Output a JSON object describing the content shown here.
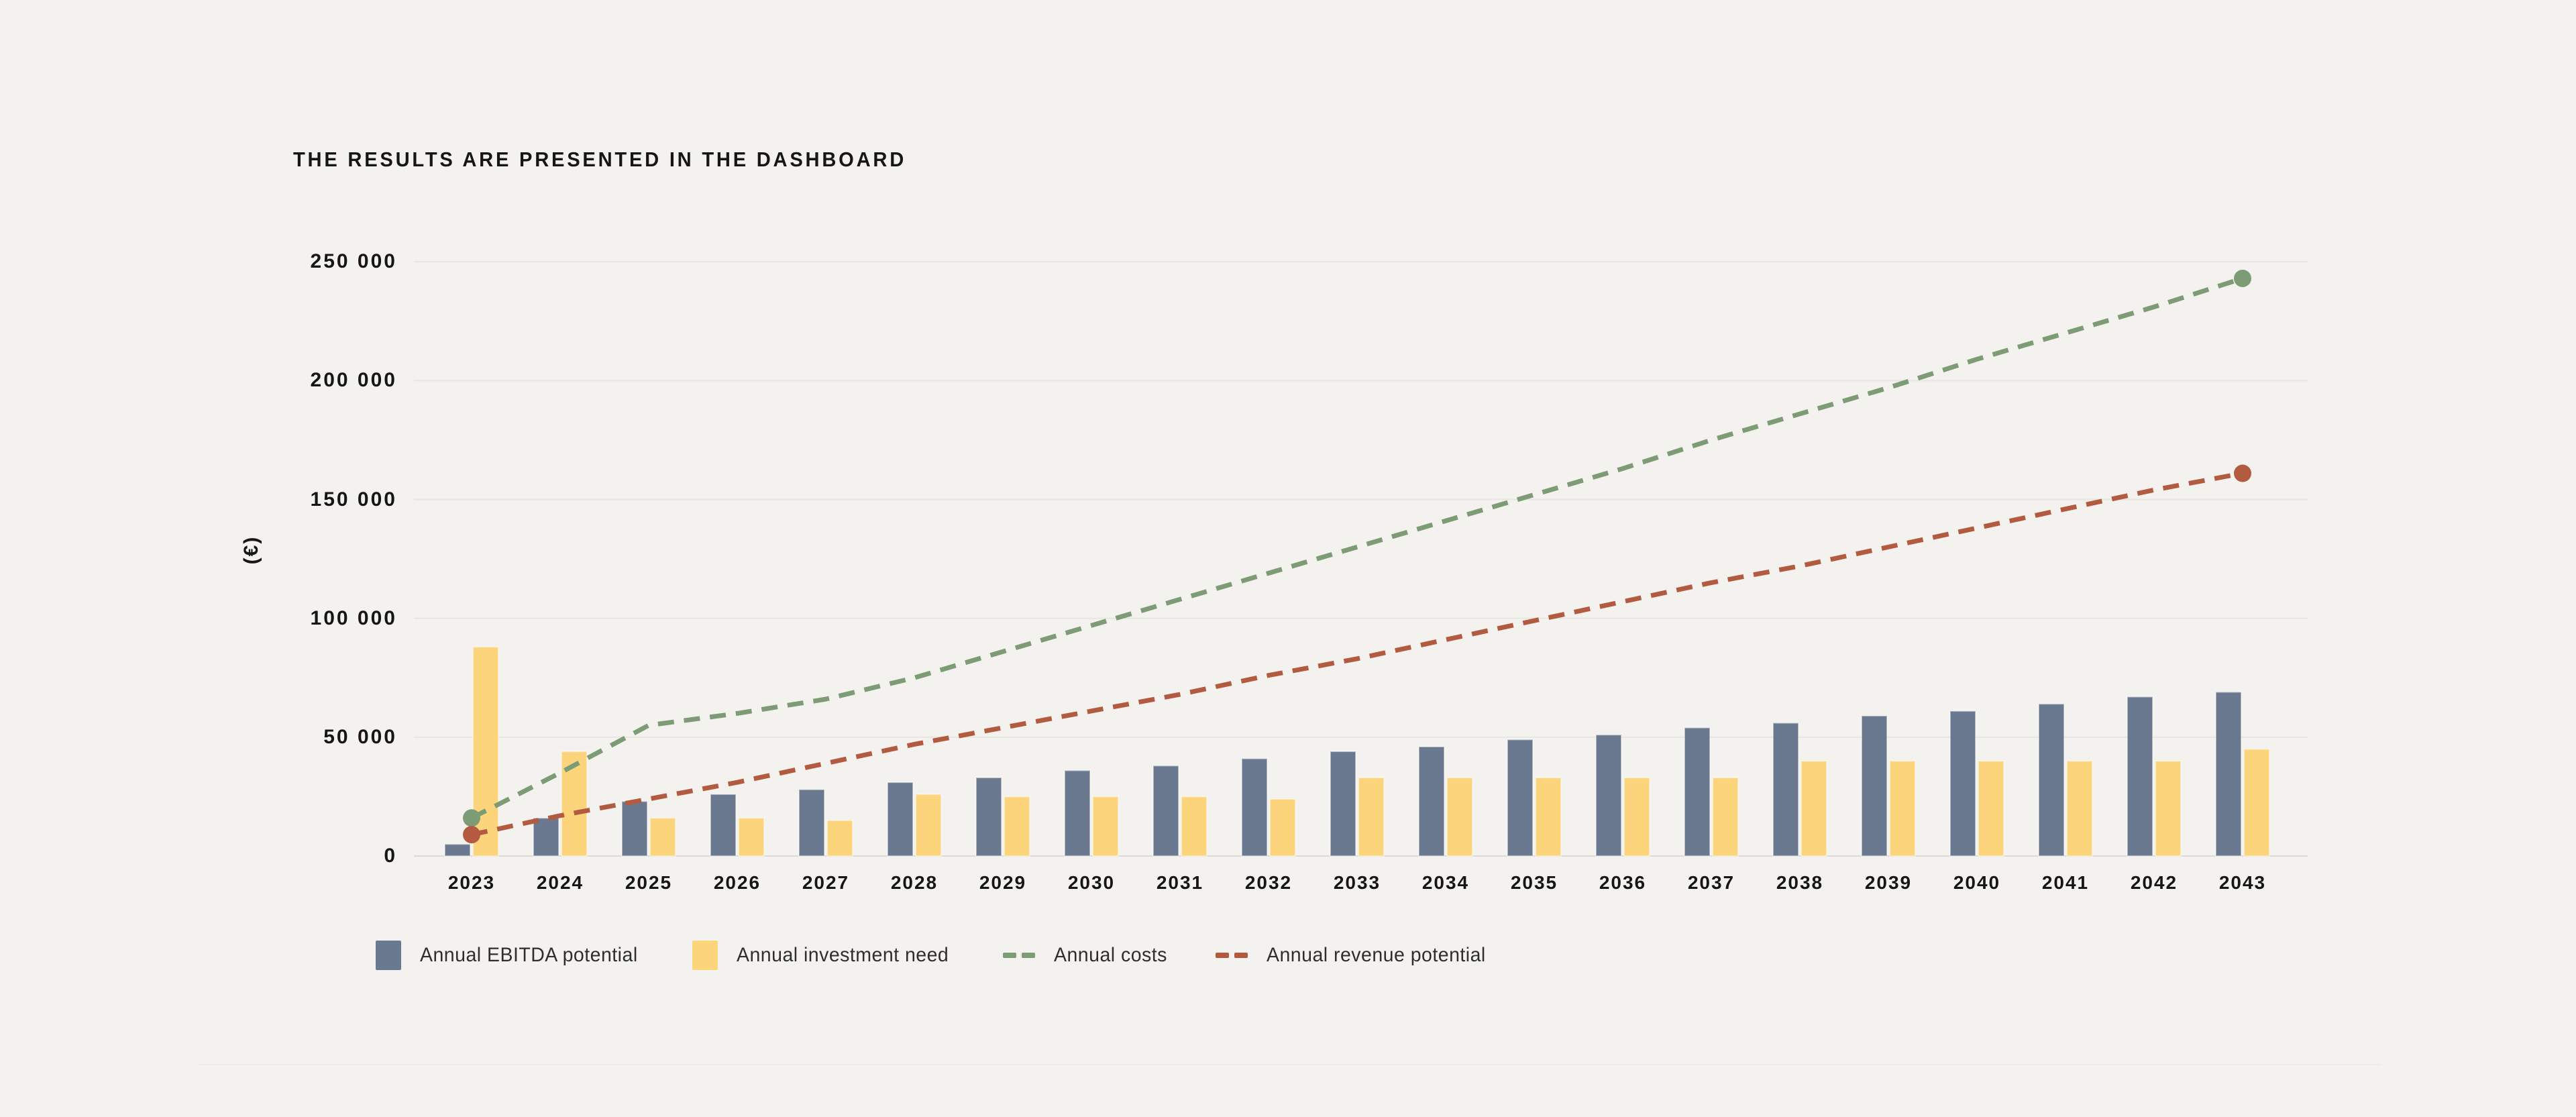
{
  "title": "THE RESULTS ARE PRESENTED IN THE DASHBOARD",
  "y_axis_label": "(€)",
  "chart_data": {
    "type": "combo-bar-line",
    "title": "THE RESULTS ARE PRESENTED IN THE DASHBOARD",
    "xlabel": "",
    "ylabel": "(€)",
    "ylim": [
      0,
      250000
    ],
    "grid": true,
    "legend_position": "bottom",
    "categories": [
      "2023",
      "2024",
      "2025",
      "2026",
      "2027",
      "2028",
      "2029",
      "2030",
      "2031",
      "2032",
      "2033",
      "2034",
      "2035",
      "2036",
      "2037",
      "2038",
      "2039",
      "2040",
      "2041",
      "2042",
      "2043"
    ],
    "y_ticks": [
      {
        "value": 0,
        "label": "0"
      },
      {
        "value": 50000,
        "label": "50 000"
      },
      {
        "value": 100000,
        "label": "100 000"
      },
      {
        "value": 150000,
        "label": "150 000"
      },
      {
        "value": 200000,
        "label": "200 000"
      },
      {
        "value": 250000,
        "label": "250 000"
      }
    ],
    "series": [
      {
        "name": "Annual EBITDA potential",
        "type": "bar",
        "color": "#6a7890",
        "values": [
          5000,
          16000,
          23000,
          26000,
          28000,
          31000,
          33000,
          36000,
          38000,
          41000,
          44000,
          46000,
          49000,
          51000,
          54000,
          56000,
          59000,
          61000,
          64000,
          67000,
          69000
        ]
      },
      {
        "name": "Annual investment need",
        "type": "bar",
        "color": "#fbd47c",
        "values": [
          88000,
          44000,
          16000,
          16000,
          15000,
          26000,
          25000,
          25000,
          25000,
          24000,
          33000,
          33000,
          33000,
          33000,
          33000,
          40000,
          40000,
          40000,
          40000,
          40000,
          45000
        ]
      },
      {
        "name": "Annual costs",
        "type": "line",
        "style": "dashed",
        "endpoint_dots": true,
        "color": "#7d9b75",
        "values": [
          16000,
          35000,
          55000,
          60000,
          66000,
          75000,
          86000,
          97000,
          108000,
          119000,
          130000,
          141000,
          152000,
          163000,
          175000,
          186000,
          197000,
          209000,
          220000,
          231000,
          243000
        ]
      },
      {
        "name": "Annual revenue potential",
        "type": "line",
        "style": "dashed",
        "endpoint_dots": true,
        "color": "#b25b41",
        "values": [
          9000,
          17000,
          24000,
          31000,
          39000,
          47000,
          54000,
          61000,
          68000,
          76000,
          83000,
          91000,
          99000,
          107000,
          115000,
          122000,
          130000,
          138000,
          146000,
          154000,
          161000
        ]
      }
    ],
    "colors": {
      "background": "#f4f2ef",
      "gridline": "#e8e6e1",
      "axis_line": "#dcd9d4",
      "text": "#161616",
      "legend_text": "#2e2e2e"
    }
  }
}
